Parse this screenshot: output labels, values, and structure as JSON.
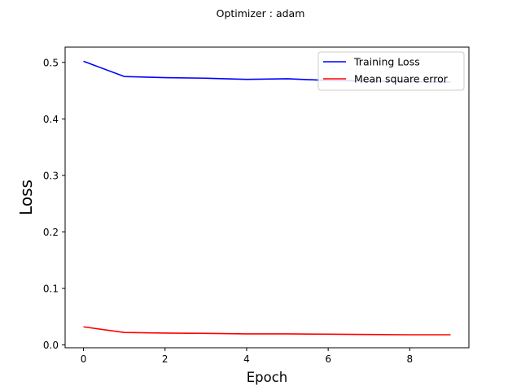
{
  "chart_data": {
    "type": "line",
    "title": "Optimizer : adam",
    "xlabel": "Epoch",
    "ylabel": "Loss",
    "x": [
      0,
      1,
      2,
      3,
      4,
      5,
      6,
      7,
      8,
      9
    ],
    "xlim": [
      -0.45,
      9.45
    ],
    "ylim": [
      -0.005,
      0.527
    ],
    "xticks": [
      0,
      2,
      4,
      6,
      8
    ],
    "yticks": [
      0.0,
      0.1,
      0.2,
      0.3,
      0.4,
      0.5
    ],
    "xtick_labels": [
      "0",
      "2",
      "4",
      "6",
      "8"
    ],
    "ytick_labels": [
      "0.0",
      "0.1",
      "0.2",
      "0.3",
      "0.4",
      "0.5"
    ],
    "grid": false,
    "legend_position": "top-right",
    "series": [
      {
        "name": "Training Loss",
        "color": "#0000ff",
        "values": [
          0.502,
          0.475,
          0.473,
          0.472,
          0.47,
          0.471,
          0.468,
          0.467,
          0.466,
          0.465
        ]
      },
      {
        "name": "Mean square error",
        "color": "#ff0000",
        "values": [
          0.032,
          0.022,
          0.021,
          0.0205,
          0.0195,
          0.0195,
          0.019,
          0.0185,
          0.018,
          0.018
        ]
      }
    ]
  }
}
